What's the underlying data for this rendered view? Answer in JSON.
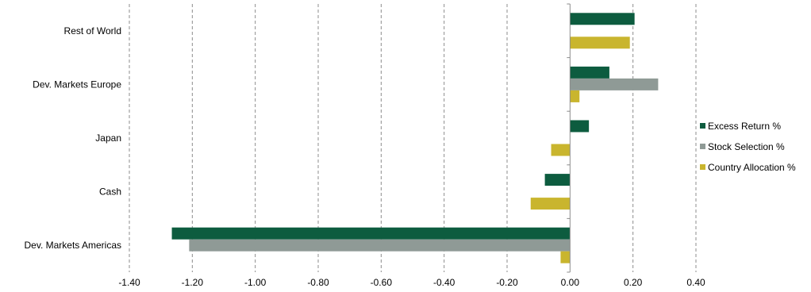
{
  "chart_data": {
    "type": "bar",
    "orientation": "horizontal",
    "categories": [
      "Rest of World",
      "Dev. Markets Europe",
      "Japan",
      "Cash",
      "Dev. Markets Americas"
    ],
    "series": [
      {
        "name": "Excess Return %",
        "color": "#0d5c3f",
        "values": [
          0.205,
          0.125,
          0.06,
          -0.08,
          -1.265
        ]
      },
      {
        "name": "Stock Selection %",
        "color": "#8f9a96",
        "values": [
          0.0,
          0.28,
          0.0,
          0.0,
          -1.21
        ]
      },
      {
        "name": "Country Allocation %",
        "color": "#c9b52e",
        "values": [
          0.19,
          0.03,
          -0.06,
          -0.125,
          -0.03
        ]
      }
    ],
    "xlim": [
      -1.4,
      0.4
    ],
    "xticks": [
      "-1.40",
      "-1.20",
      "-1.00",
      "-0.80",
      "-0.60",
      "-0.40",
      "-0.20",
      "0.00",
      "0.20",
      "0.40"
    ],
    "grid": true,
    "legend_position": "right"
  }
}
